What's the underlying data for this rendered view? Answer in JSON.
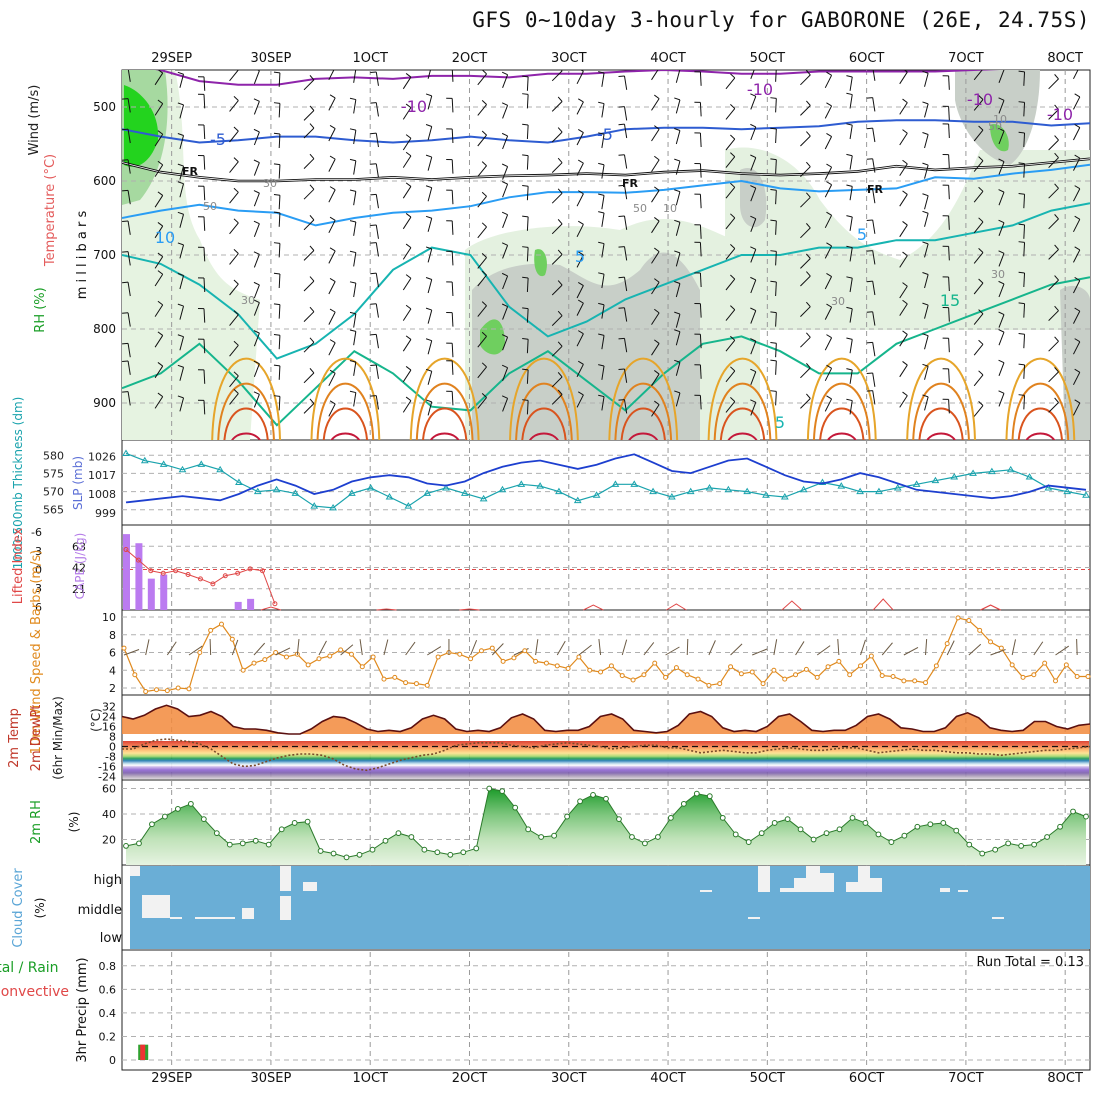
{
  "title": "GFS 0~10day 3-hourly for GABORONE (26E, 24.75S)",
  "time_axis": {
    "labels": [
      "29SEP",
      "30SEP",
      "1OCT",
      "2OCT",
      "3OCT",
      "4OCT",
      "5OCT",
      "6OCT",
      "7OCT",
      "8OCT"
    ],
    "tick_hours": [
      12,
      36,
      60,
      84,
      108,
      132,
      156,
      180,
      204,
      228
    ],
    "start_hour": 0,
    "end_hour": 234
  },
  "chart_data": [
    {
      "id": "upper_air",
      "type": "heatmap",
      "ylabel_rh": "RH (%)",
      "ylabel_temp": "Temperature (°C)",
      "ylabel_wind": "Wind (m/s)",
      "ylabel_pressure": "millibars",
      "ylim": [
        950,
        450
      ],
      "yticks": [
        500,
        600,
        700,
        800,
        900
      ],
      "temperature_contour_labels": [
        "-10",
        "-10",
        "-5",
        "-5",
        "FR",
        "FR",
        "FR",
        "-10",
        "-10",
        "5",
        "5",
        "10",
        "15",
        "5"
      ],
      "rh_contour_labels": [
        "30",
        "30",
        "30",
        "30",
        "50",
        "50",
        "50",
        "10",
        "10"
      ],
      "isotherms": [
        {
          "label": "-10",
          "color": "#8e24aa",
          "levels": [
            440,
            450,
            465,
            470,
            470,
            462,
            460,
            462,
            458,
            458,
            460,
            455,
            455,
            452,
            450,
            452,
            455,
            455,
            452,
            452,
            452,
            452,
            450,
            448,
            448,
            446
          ]
        },
        {
          "label": "-5",
          "color": "#2e5cd1",
          "levels": [
            530,
            540,
            548,
            545,
            540,
            540,
            545,
            548,
            545,
            540,
            545,
            548,
            540,
            530,
            528,
            528,
            530,
            528,
            526,
            520,
            518,
            518,
            520,
            520,
            525,
            522
          ]
        },
        {
          "label": "FR",
          "color": "#111111",
          "levels": [
            575,
            588,
            595,
            600,
            600,
            598,
            598,
            595,
            598,
            595,
            593,
            592,
            590,
            592,
            588,
            586,
            590,
            592,
            590,
            587,
            580,
            585,
            582,
            580,
            575,
            570
          ]
        },
        {
          "label": "-10?",
          "color": "#2a9df4",
          "levels": [
            650,
            640,
            632,
            640,
            643,
            660,
            650,
            643,
            640,
            634,
            622,
            615,
            615,
            616,
            612,
            606,
            600,
            610,
            614,
            612,
            610,
            595,
            597,
            590,
            585,
            578
          ]
        },
        {
          "label": "10",
          "color": "#17b4b1",
          "levels": [
            700,
            712,
            740,
            780,
            840,
            820,
            780,
            720,
            690,
            700,
            770,
            810,
            790,
            760,
            740,
            720,
            700,
            700,
            690,
            690,
            680,
            680,
            670,
            660,
            640,
            630
          ]
        },
        {
          "label": "15",
          "color": "#16b58c",
          "levels": [
            880,
            860,
            820,
            870,
            930,
            880,
            830,
            860,
            905,
            910,
            860,
            830,
            870,
            910,
            860,
            820,
            810,
            830,
            860,
            860,
            820,
            800,
            780,
            760,
            740,
            730
          ]
        }
      ]
    },
    {
      "id": "thickness_slp",
      "type": "line",
      "ylabel_left": "1000-500mb Thickness (dm)",
      "ylabel_right": "SLP (mb)",
      "yticks_thickness": [
        "580",
        "575",
        "570",
        "565"
      ],
      "yticks_slp": [
        "1026",
        "1017",
        "1008",
        "999"
      ],
      "series": [
        {
          "name": "Thickness",
          "color": "#1aa3ad",
          "values": [
            580.5,
            578.5,
            577.5,
            576,
            577.5,
            576,
            572.5,
            570,
            570.5,
            569.5,
            566,
            565.5,
            569.5,
            571,
            568.5,
            566,
            569.5,
            571,
            569.5,
            568,
            570.5,
            572,
            571.5,
            570,
            567.5,
            569,
            572,
            572,
            570,
            568.5,
            570,
            571,
            570.5,
            570,
            569,
            568.5,
            570.5,
            572.5,
            571.5,
            570,
            570,
            571,
            572,
            573,
            574,
            575,
            575.5,
            576,
            574,
            571,
            570,
            569
          ]
        },
        {
          "name": "SLP",
          "color": "#1d3fcf",
          "values": [
            1004,
            1005,
            1006,
            1007,
            1006,
            1005,
            1008,
            1012,
            1015,
            1012,
            1008,
            1010,
            1014,
            1016,
            1017,
            1016,
            1013,
            1012,
            1014,
            1018,
            1021,
            1023,
            1024,
            1022,
            1020,
            1022,
            1025,
            1027,
            1023,
            1019,
            1018,
            1021,
            1024,
            1025,
            1021,
            1017,
            1014,
            1013,
            1015,
            1018,
            1016,
            1013,
            1010,
            1009,
            1008,
            1007,
            1006,
            1007,
            1009,
            1012,
            1011,
            1010
          ]
        }
      ]
    },
    {
      "id": "cape_li",
      "type": "bar",
      "ylabel_li": "Lifted Index",
      "ylabel_cape": "CAPE (J/kg)",
      "yticks_li": [
        "-6",
        "-3",
        "0",
        "3",
        "6"
      ],
      "yticks_cape": [
        "63",
        "42",
        "21"
      ],
      "cape_hours": [
        0,
        3,
        6,
        9,
        12,
        15,
        18,
        21,
        27,
        30
      ],
      "cape_values": [
        75,
        66,
        31,
        35,
        0,
        0,
        0,
        0,
        8,
        11
      ],
      "li_hours": [
        0,
        3,
        6,
        9,
        12,
        15,
        18,
        21,
        24,
        27,
        30,
        33,
        36
      ],
      "li_values": [
        -3.2,
        -1.5,
        0.2,
        0.6,
        0.2,
        0.8,
        1.5,
        2.3,
        1.0,
        0.6,
        -0.1,
        0.2,
        5.5
      ]
    },
    {
      "id": "wind10m",
      "type": "line",
      "ylabel": "10m Wind Speed & Barbs (m/s)",
      "yticks": [
        "10",
        "8",
        "6",
        "4",
        "2"
      ],
      "series": [
        {
          "name": "Wind Speed",
          "color": "#e08a1e",
          "values": [
            6.5,
            3.5,
            1.6,
            1.8,
            1.7,
            2.0,
            1.9,
            6.0,
            8.5,
            9.2,
            7.5,
            4.0,
            4.8,
            5.2,
            6.0,
            5.5,
            5.8,
            4.6,
            5.3,
            5.6,
            6.3,
            5.8,
            4.4,
            5.5,
            3.0,
            3.2,
            2.6,
            2.5,
            2.3,
            5.5,
            6.0,
            5.8,
            5.3,
            6.2,
            6.5,
            5.0,
            5.4,
            6.2,
            5.0,
            4.8,
            4.5,
            4.2,
            5.5,
            4.0,
            3.8,
            4.5,
            3.4,
            2.9,
            3.5,
            4.8,
            3.2,
            4.3,
            3.5,
            3.0,
            2.3,
            2.5,
            4.4,
            3.6,
            3.8,
            2.5,
            4.0,
            3.0,
            3.5,
            4.1,
            3.2,
            4.4,
            5.0,
            3.5,
            4.5,
            5.6,
            3.4,
            3.3,
            2.8,
            2.8,
            2.6,
            4.5,
            7.0,
            9.9,
            9.6,
            8.5,
            7.2,
            6.5,
            4.6,
            3.2,
            3.5,
            4.8,
            2.8,
            4.6,
            3.3,
            3.3
          ]
        }
      ]
    },
    {
      "id": "temp2m",
      "type": "line",
      "ylabel": "2m Temp 2m DewPt (6hr Min/Max) (°C)",
      "yticks": [
        "32",
        "24",
        "16",
        "8",
        "0",
        "-8",
        "-16",
        "-24"
      ],
      "series": [
        {
          "name": "2m Temp",
          "color": "#5b1010",
          "values": [
            24,
            22,
            25,
            30,
            33,
            30,
            24,
            25,
            28,
            24,
            16,
            14,
            14,
            13,
            11,
            10,
            10,
            14,
            20,
            24,
            23,
            19,
            14,
            12,
            13,
            12,
            15,
            22,
            25,
            22,
            14,
            12,
            13,
            12,
            15,
            23,
            26,
            22,
            13,
            12,
            13,
            13,
            16,
            24,
            26,
            22,
            13,
            12,
            11,
            12,
            17,
            26,
            28,
            24,
            15,
            12,
            13,
            12,
            16,
            24,
            26,
            20,
            13,
            12,
            13,
            13,
            17,
            24,
            26,
            22,
            15,
            14,
            12,
            12,
            15,
            24,
            27,
            23,
            15,
            13,
            12,
            13,
            20,
            20,
            16,
            14,
            17,
            18
          ]
        },
        {
          "name": "2m DewPt",
          "color": "#7a4a2a",
          "values": [
            -2,
            -2,
            2,
            5,
            6,
            5,
            4,
            2,
            -2,
            -8,
            -14,
            -16,
            -15,
            -12,
            -9,
            -7,
            -6,
            -6,
            -7,
            -10,
            -15,
            -18,
            -19,
            -17,
            -14,
            -11,
            -9,
            -7,
            -6,
            -3,
            1,
            2,
            3,
            3,
            3,
            1,
            0,
            -1,
            1,
            2,
            3,
            2,
            1,
            0,
            -2,
            -1,
            0,
            1,
            1,
            -1,
            -1,
            -3,
            -5,
            -4,
            -3,
            -4,
            -5,
            -5,
            -3,
            -2,
            -1,
            -2,
            -3,
            -3,
            -2,
            -1,
            -1,
            -3,
            -5,
            -4,
            -3,
            -2,
            -3,
            -3,
            -4,
            -5,
            -5,
            -6,
            -6,
            -7,
            -6,
            -5,
            -4,
            -3,
            -3,
            -2,
            -1,
            0
          ]
        }
      ]
    },
    {
      "id": "rh2m",
      "type": "area",
      "ylabel": "2m RH (%)",
      "yticks": [
        "60",
        "40",
        "20"
      ],
      "series": [
        {
          "name": "2m RH",
          "color": "#1d9e26",
          "values": [
            15,
            17,
            32,
            38,
            44,
            48,
            36,
            25,
            16,
            17,
            19,
            16,
            28,
            33,
            34,
            11,
            9,
            6,
            8,
            12,
            19,
            25,
            22,
            12,
            10,
            8,
            10,
            13,
            60,
            58,
            45,
            28,
            22,
            23,
            38,
            50,
            55,
            52,
            36,
            22,
            17,
            22,
            37,
            48,
            56,
            54,
            37,
            24,
            18,
            25,
            33,
            36,
            28,
            20,
            25,
            28,
            37,
            33,
            24,
            18,
            23,
            30,
            32,
            33,
            27,
            16,
            9,
            12,
            17,
            15,
            16,
            22,
            30,
            42,
            38
          ]
        }
      ]
    },
    {
      "id": "cloud_cover",
      "type": "heatmap",
      "ylabel": "Cloud Cover (%)",
      "rows": [
        "high",
        "middle",
        "low"
      ],
      "fill_color": "#6aaed6",
      "gap_color": "#f0f0f0"
    },
    {
      "id": "precip",
      "type": "bar",
      "ylabel_left": "Total / Rain",
      "ylabel_left2": "Convective",
      "ylabel": "3hr Precip (mm)",
      "yticks": [
        "0.8",
        "0.6",
        "0.4",
        "0.2",
        "0"
      ],
      "run_total_label": "Run Total = 0.13",
      "bars": [
        {
          "hour": 1.5,
          "total": 0.13,
          "convective": 0.13
        }
      ]
    }
  ]
}
